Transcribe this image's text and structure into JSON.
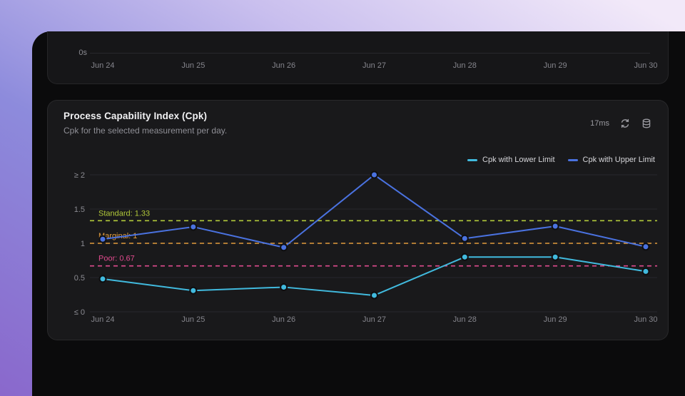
{
  "top_card": {
    "ytick_label": "0s",
    "dates": [
      "Jun 24",
      "Jun 25",
      "Jun 26",
      "Jun 27",
      "Jun 28",
      "Jun 29",
      "Jun 30"
    ]
  },
  "main_card": {
    "title": "Process Capability Index (Cpk)",
    "subtitle": "Cpk for the selected measurement per day.",
    "latency": "17ms",
    "legend": [
      {
        "label": "Cpk with Lower Limit",
        "color": "#41bade"
      },
      {
        "label": "Cpk with Upper Limit",
        "color": "#4a72e0"
      }
    ]
  },
  "chart_data": {
    "type": "line",
    "title": "Process Capability Index (Cpk)",
    "x": [
      "Jun 24",
      "Jun 25",
      "Jun 26",
      "Jun 27",
      "Jun 28",
      "Jun 29",
      "Jun 30"
    ],
    "series": [
      {
        "name": "Cpk with Lower Limit",
        "color": "#41bade",
        "values": [
          0.48,
          0.31,
          0.36,
          0.24,
          0.8,
          0.8,
          0.59
        ]
      },
      {
        "name": "Cpk with Upper Limit",
        "color": "#4a72e0",
        "values": [
          1.06,
          1.24,
          0.94,
          2.0,
          1.07,
          1.25,
          0.95
        ]
      }
    ],
    "yticks": [
      {
        "value": 2,
        "label": "≥ 2"
      },
      {
        "value": 1.5,
        "label": "1.5"
      },
      {
        "value": 1,
        "label": "1"
      },
      {
        "value": 0.5,
        "label": "0.5"
      },
      {
        "value": 0,
        "label": "≤ 0"
      }
    ],
    "reference_lines": [
      {
        "label": "Standard: 1.33",
        "value": 1.33,
        "color": "#b2c93a"
      },
      {
        "label": "Marginal: 1",
        "value": 1.0,
        "color": "#e29d3d"
      },
      {
        "label": "Poor: 0.67",
        "value": 0.67,
        "color": "#e04b8e"
      }
    ],
    "ylim": [
      0,
      2
    ],
    "grid": true,
    "legend_position": "top-right"
  }
}
